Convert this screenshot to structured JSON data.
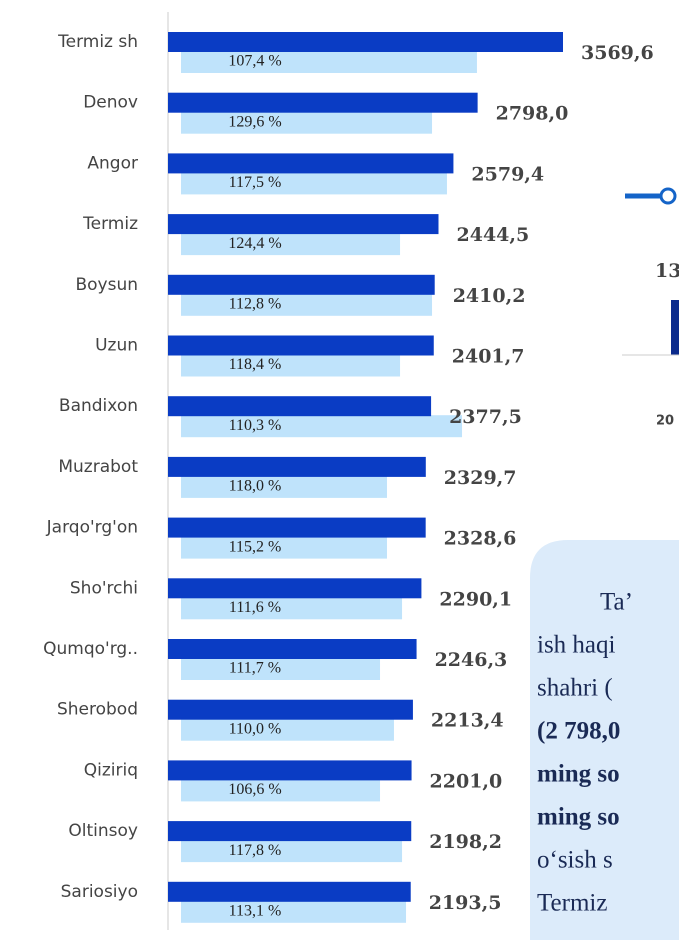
{
  "chart_data": {
    "type": "bar",
    "orientation": "horizontal",
    "categories": [
      "Termiz sh",
      "Denov",
      "Angor",
      "Termiz",
      "Boysun",
      "Uzun",
      "Bandixon",
      "Muzrabot",
      "Jarqo'rg'on",
      "Sho'rchi",
      "Qumqo'rg..",
      "Sherobod",
      "Qiziriq",
      "Oltinsoy",
      "Sariosiyo"
    ],
    "series": [
      {
        "color": "#0a3cc4",
        "values": [
          3569.6,
          2798.0,
          2579.4,
          2444.5,
          2410.2,
          2401.7,
          2377.5,
          2329.7,
          2328.6,
          2290.1,
          2246.3,
          2213.4,
          2201.0,
          2198.2,
          2193.5
        ],
        "value_labels": [
          "3569,6",
          "2798,0",
          "2579,4",
          "2444,5",
          "2410,2",
          "2401,7",
          "2377,5",
          "2329,7",
          "2328,6",
          "2290,1",
          "2246,3",
          "2213,4",
          "2201,0",
          "2198,2",
          "2193,5"
        ]
      },
      {
        "color": "#bfe3fb",
        "values": [
          2792,
          2386,
          2521,
          2097,
          2386,
          2097,
          2657,
          1979,
          1979,
          2115,
          1916,
          2042,
          1916,
          2115,
          2151
        ]
      }
    ],
    "annotations": [
      "107,4 %",
      "129,6 %",
      "117,5 %",
      "124,4 %",
      "112,8 %",
      "118,4 %",
      "110,3 %",
      "118,0 %",
      "115,2 %",
      "111,6 %",
      "111,7 %",
      "110,0 %",
      "106,6 %",
      "117,8 %",
      "113,1 %"
    ],
    "xlim": [
      0,
      3569.6
    ]
  },
  "side": {
    "labels": [
      "13",
      "20"
    ],
    "text_lines": [
      "Ta’",
      "ish haqi",
      "shahri (",
      "(2 798,0",
      "ming so",
      "ming so",
      "o‘sish s",
      "Termiz"
    ]
  }
}
